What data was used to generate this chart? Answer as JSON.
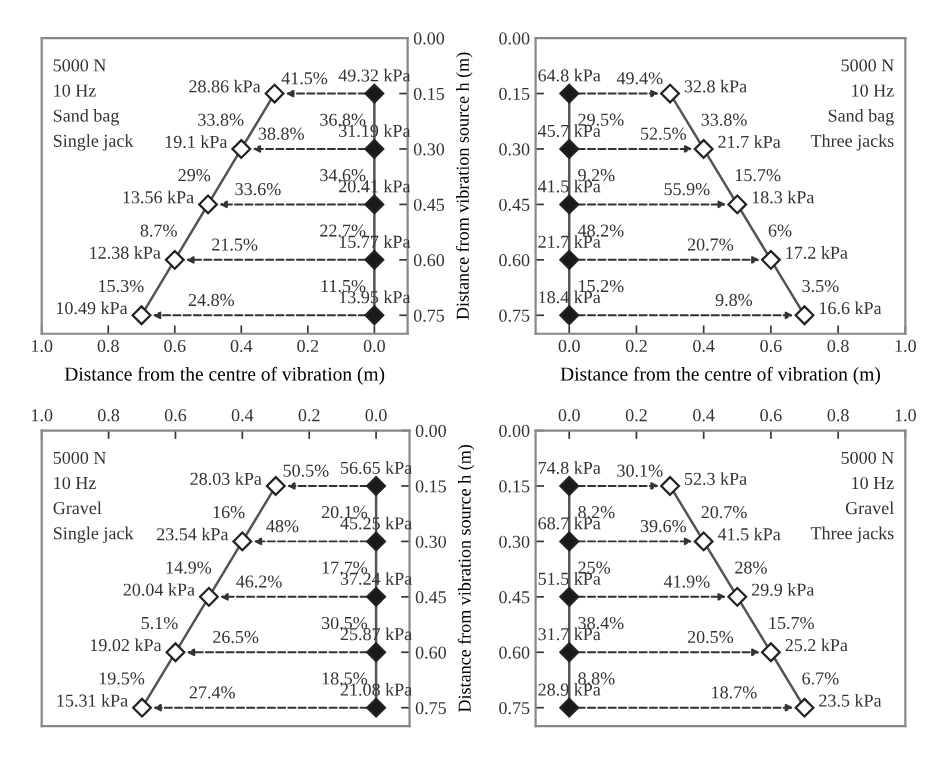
{
  "chart_data": [
    {
      "type": "line",
      "xlabel": "Distance from the centre of vibration (m)",
      "ylabel": "Distance from vibration source h (m)",
      "marker": "diamond",
      "line_style": "solid",
      "xlim": [
        1.0,
        -0.1
      ],
      "xticks": [
        {
          "value": 1.0,
          "label": "1.0"
        },
        {
          "value": 0.8,
          "label": "0.8"
        },
        {
          "value": 0.6,
          "label": "0.6"
        },
        {
          "value": 0.4,
          "label": "0.4"
        },
        {
          "value": 0.2,
          "label": "0.2"
        },
        {
          "value": 0.0,
          "label": "0.0"
        }
      ],
      "ylim": [
        0.8,
        0.0
      ],
      "yticks": [
        {
          "value": 0.0,
          "label": "0.00"
        },
        0.15,
        {
          "value": 0.3,
          "label": "0.30"
        },
        0.45,
        {
          "value": 0.6,
          "label": "0.60"
        },
        0.75
      ],
      "series": [
        {
          "color": "#ffffff",
          "x": [
            0.3,
            0.4,
            0.5,
            0.6,
            0.7
          ],
          "values": [
            0.15,
            0.3,
            0.45,
            0.6,
            0.75
          ]
        },
        {
          "color": "#1a1a1a",
          "x": [
            0.0,
            0.0,
            0.0,
            0.0,
            0.0
          ],
          "values": [
            0.15,
            0.3,
            0.45,
            0.6,
            0.75
          ]
        }
      ],
      "annotations": [
        {
          "text": "28.86 kPa",
          "x": 0.3,
          "y": 0.15
        },
        {
          "text": "19.1 kPa",
          "x": 0.4,
          "y": 0.3
        },
        {
          "text": "13.56 kPa",
          "x": 0.5,
          "y": 0.45
        },
        {
          "text": "12.38 kPa",
          "x": 0.6,
          "y": 0.6
        },
        {
          "text": "10.49 kPa",
          "x": 0.7,
          "y": 0.75
        },
        {
          "text": "49.32 kPa",
          "x": 0.0,
          "y": 0.15
        },
        {
          "text": "31.19 kPa",
          "x": 0.0,
          "y": 0.3
        },
        {
          "text": "20.41 kPa",
          "x": 0.0,
          "y": 0.45
        },
        {
          "text": "15.77 kPa",
          "x": 0.0,
          "y": 0.6
        },
        {
          "text": "13.95 kPa",
          "x": 0.0,
          "y": 0.75
        },
        "5000 N",
        "10 Hz",
        "Sand bag",
        "Single jack",
        {
          "text": "41.5%",
          "x": 0.3,
          "y": 0.15
        },
        {
          "text": "38.8%",
          "x": 0.4,
          "y": 0.3
        },
        {
          "text": "33.6%",
          "x": 0.5,
          "y": 0.45
        },
        {
          "text": "21.5%",
          "x": 0.6,
          "y": 0.6
        },
        {
          "text": "24.8%",
          "x": 0.7,
          "y": 0.75
        },
        {
          "text": "36.8%",
          "x": 0.0,
          "y": 0.225
        },
        {
          "text": "34.6%",
          "x": 0.0,
          "y": 0.375
        },
        {
          "text": "22.7%",
          "x": 0.0,
          "y": 0.525
        },
        {
          "text": "11.5%",
          "x": 0.0,
          "y": 0.675
        },
        {
          "text": "33.8%",
          "x": 0.35,
          "y": 0.225
        },
        {
          "text": "29%",
          "x": 0.45,
          "y": 0.375
        },
        {
          "text": "8.7%",
          "x": 0.55,
          "y": 0.525
        },
        {
          "text": "15.3%",
          "x": 0.65,
          "y": 0.675
        }
      ]
    },
    {
      "type": "line",
      "xlabel": "Distance from the centre of vibration (m)",
      "marker": "diamond",
      "line_style": "solid",
      "xlim": [
        -0.1,
        1.0
      ],
      "xticks": [
        {
          "value": 0.0,
          "label": "0.0"
        },
        {
          "value": 0.2,
          "label": "0.2"
        },
        {
          "value": 0.4,
          "label": "0.4"
        },
        {
          "value": 0.6,
          "label": "0.6"
        },
        {
          "value": 0.8,
          "label": "0.8"
        },
        {
          "value": 1.0,
          "label": "1.0"
        }
      ],
      "ylim": [
        0.8,
        0.0
      ],
      "yticks": [
        {
          "value": 0.0,
          "label": "0.00"
        },
        0.15,
        {
          "value": 0.3,
          "label": "0.30"
        },
        0.45,
        {
          "value": 0.6,
          "label": "0.60"
        },
        0.75
      ],
      "series": [
        {
          "color": "#ffffff",
          "x": [
            0.3,
            0.4,
            0.5,
            0.6,
            0.7
          ],
          "values": [
            0.15,
            0.3,
            0.45,
            0.6,
            0.75
          ]
        },
        {
          "color": "#1a1a1a",
          "x": [
            0.0,
            0.0,
            0.0,
            0.0,
            0.0
          ],
          "values": [
            0.15,
            0.3,
            0.45,
            0.6,
            0.75
          ]
        }
      ],
      "annotations": [
        {
          "text": "32.8 kPa",
          "x": 0.3,
          "y": 0.15
        },
        {
          "text": "21.7 kPa",
          "x": 0.4,
          "y": 0.3
        },
        {
          "text": "18.3 kPa",
          "x": 0.5,
          "y": 0.45
        },
        {
          "text": "17.2 kPa",
          "x": 0.6,
          "y": 0.6
        },
        {
          "text": "16.6 kPa",
          "x": 0.7,
          "y": 0.75
        },
        {
          "text": "64.8 kPa",
          "x": 0.0,
          "y": 0.15
        },
        {
          "text": "45.7 kPa",
          "x": 0.0,
          "y": 0.3
        },
        {
          "text": "41.5 kPa",
          "x": 0.0,
          "y": 0.45
        },
        {
          "text": "21.7 kPa",
          "x": 0.0,
          "y": 0.6
        },
        {
          "text": "18.4 kPa",
          "x": 0.0,
          "y": 0.75
        },
        "5000 N",
        "10 Hz",
        "Sand bag",
        "Three jacks",
        {
          "text": "49.4%",
          "x": 0.3,
          "y": 0.15
        },
        {
          "text": "52.5%",
          "x": 0.4,
          "y": 0.3
        },
        {
          "text": "55.9%",
          "x": 0.5,
          "y": 0.45
        },
        {
          "text": "20.7%",
          "x": 0.6,
          "y": 0.6
        },
        {
          "text": "9.8%",
          "x": 0.7,
          "y": 0.75
        },
        {
          "text": "29.5%",
          "x": 0.0,
          "y": 0.225
        },
        {
          "text": "9.2%",
          "x": 0.0,
          "y": 0.375
        },
        {
          "text": "48.2%",
          "x": 0.0,
          "y": 0.525
        },
        {
          "text": "15.2%",
          "x": 0.0,
          "y": 0.675
        },
        {
          "text": "33.8%",
          "x": 0.35,
          "y": 0.225
        },
        {
          "text": "15.7%",
          "x": 0.45,
          "y": 0.375
        },
        {
          "text": "6%",
          "x": 0.55,
          "y": 0.525
        },
        {
          "text": "3.5%",
          "x": 0.65,
          "y": 0.675
        }
      ]
    },
    {
      "type": "line",
      "ylabel": "Distance from vibration source h (m)",
      "marker": "diamond",
      "line_style": "solid",
      "xlim": [
        1.0,
        -0.1
      ],
      "xticks": [
        {
          "value": 1.0,
          "label": "1.0"
        },
        {
          "value": 0.8,
          "label": "0.8"
        },
        {
          "value": 0.6,
          "label": "0.6"
        },
        {
          "value": 0.4,
          "label": "0.4"
        },
        {
          "value": 0.2,
          "label": "0.2"
        },
        {
          "value": 0.0,
          "label": "0.0"
        }
      ],
      "ylim": [
        0.8,
        0.0
      ],
      "yticks": [
        {
          "value": 0.0,
          "label": "0.00"
        },
        0.15,
        {
          "value": 0.3,
          "label": "0.30"
        },
        0.45,
        {
          "value": 0.6,
          "label": "0.60"
        },
        0.75
      ],
      "series": [
        {
          "color": "#ffffff",
          "x": [
            0.3,
            0.4,
            0.5,
            0.6,
            0.7
          ],
          "values": [
            0.15,
            0.3,
            0.45,
            0.6,
            0.75
          ]
        },
        {
          "color": "#1a1a1a",
          "x": [
            0.0,
            0.0,
            0.0,
            0.0,
            0.0
          ],
          "values": [
            0.15,
            0.3,
            0.45,
            0.6,
            0.75
          ]
        }
      ],
      "annotations": [
        {
          "text": "28.03 kPa",
          "x": 0.3,
          "y": 0.15
        },
        {
          "text": "23.54 kPa",
          "x": 0.4,
          "y": 0.3
        },
        {
          "text": "20.04 kPa",
          "x": 0.5,
          "y": 0.45
        },
        {
          "text": "19.02 kPa",
          "x": 0.6,
          "y": 0.6
        },
        {
          "text": "15.31 kPa",
          "x": 0.7,
          "y": 0.75
        },
        {
          "text": "56.65 kPa",
          "x": 0.0,
          "y": 0.15
        },
        {
          "text": "45.25 kPa",
          "x": 0.0,
          "y": 0.3
        },
        {
          "text": "37.24 kPa",
          "x": 0.0,
          "y": 0.45
        },
        {
          "text": "25.87 kPa",
          "x": 0.0,
          "y": 0.6
        },
        {
          "text": "21.08 kPa",
          "x": 0.0,
          "y": 0.75
        },
        "5000 N",
        "10 Hz",
        "Gravel",
        "Single jack",
        {
          "text": "50.5%",
          "x": 0.3,
          "y": 0.15
        },
        {
          "text": "48%",
          "x": 0.4,
          "y": 0.3
        },
        {
          "text": "46.2%",
          "x": 0.5,
          "y": 0.45
        },
        {
          "text": "26.5%",
          "x": 0.6,
          "y": 0.6
        },
        {
          "text": "27.4%",
          "x": 0.7,
          "y": 0.75
        },
        {
          "text": "20.1%",
          "x": 0.0,
          "y": 0.225
        },
        {
          "text": "17.7%",
          "x": 0.0,
          "y": 0.375
        },
        {
          "text": "30.5%",
          "x": 0.0,
          "y": 0.525
        },
        {
          "text": "18.5%",
          "x": 0.0,
          "y": 0.675
        },
        {
          "text": "16%",
          "x": 0.35,
          "y": 0.225
        },
        {
          "text": "14.9%",
          "x": 0.45,
          "y": 0.375
        },
        {
          "text": "5.1%",
          "x": 0.55,
          "y": 0.525
        },
        {
          "text": "19.5%",
          "x": 0.65,
          "y": 0.675
        }
      ]
    },
    {
      "type": "line",
      "marker": "diamond",
      "line_style": "solid",
      "xlim": [
        -0.1,
        1.0
      ],
      "xticks": [
        {
          "value": 0.0,
          "label": "0.0"
        },
        {
          "value": 0.2,
          "label": "0.2"
        },
        {
          "value": 0.4,
          "label": "0.4"
        },
        {
          "value": 0.6,
          "label": "0.6"
        },
        {
          "value": 0.8,
          "label": "0.8"
        },
        {
          "value": 1.0,
          "label": "1.0"
        }
      ],
      "ylim": [
        0.8,
        0.0
      ],
      "yticks": [
        {
          "value": 0.0,
          "label": "0.00"
        },
        0.15,
        {
          "value": 0.3,
          "label": "0.30"
        },
        0.45,
        {
          "value": 0.6,
          "label": "0.60"
        },
        0.75
      ],
      "series": [
        {
          "color": "#ffffff",
          "x": [
            0.3,
            0.4,
            0.5,
            0.6,
            0.7
          ],
          "values": [
            0.15,
            0.3,
            0.45,
            0.6,
            0.75
          ]
        },
        {
          "color": "#1a1a1a",
          "x": [
            0.0,
            0.0,
            0.0,
            0.0,
            0.0
          ],
          "values": [
            0.15,
            0.3,
            0.45,
            0.6,
            0.75
          ]
        }
      ],
      "annotations": [
        {
          "text": "52.3 kPa",
          "x": 0.3,
          "y": 0.15
        },
        {
          "text": "41.5 kPa",
          "x": 0.4,
          "y": 0.3
        },
        {
          "text": "29.9 kPa",
          "x": 0.5,
          "y": 0.45
        },
        {
          "text": "25.2 kPa",
          "x": 0.6,
          "y": 0.6
        },
        {
          "text": "23.5 kPa",
          "x": 0.7,
          "y": 0.75
        },
        {
          "text": "74.8 kPa",
          "x": 0.0,
          "y": 0.15
        },
        {
          "text": "68.7 kPa",
          "x": 0.0,
          "y": 0.3
        },
        {
          "text": "51.5 kPa",
          "x": 0.0,
          "y": 0.45
        },
        {
          "text": "31.7 kPa",
          "x": 0.0,
          "y": 0.6
        },
        {
          "text": "28.9 kPa",
          "x": 0.0,
          "y": 0.75
        },
        "5000 N",
        "10 Hz",
        "Gravel",
        "Three jacks",
        {
          "text": "30.1%",
          "x": 0.3,
          "y": 0.15
        },
        {
          "text": "39.6%",
          "x": 0.4,
          "y": 0.3
        },
        {
          "text": "41.9%",
          "x": 0.5,
          "y": 0.45
        },
        {
          "text": "20.5%",
          "x": 0.6,
          "y": 0.6
        },
        {
          "text": "18.7%",
          "x": 0.7,
          "y": 0.75
        },
        {
          "text": "8.2%",
          "x": 0.0,
          "y": 0.225
        },
        {
          "text": "25%",
          "x": 0.0,
          "y": 0.375
        },
        {
          "text": "38.4%",
          "x": 0.0,
          "y": 0.525
        },
        {
          "text": "8.8%",
          "x": 0.0,
          "y": 0.675
        },
        {
          "text": "20.7%",
          "x": 0.35,
          "y": 0.225
        },
        {
          "text": "28%",
          "x": 0.45,
          "y": 0.375
        },
        {
          "text": "15.7%",
          "x": 0.55,
          "y": 0.525
        },
        {
          "text": "6.7%",
          "x": 0.65,
          "y": 0.675
        }
      ]
    }
  ]
}
